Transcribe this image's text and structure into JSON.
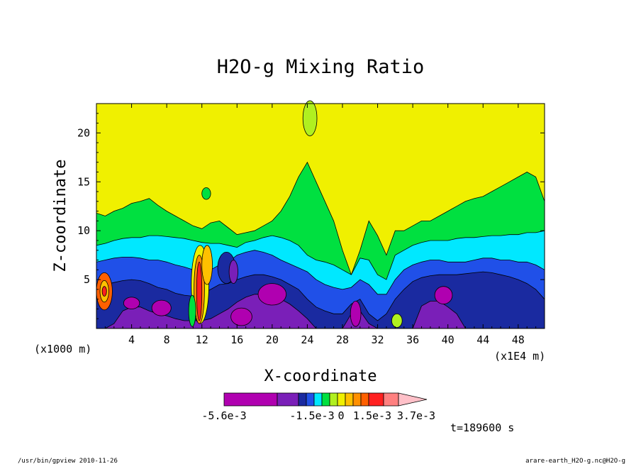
{
  "chart_data": {
    "type": "heatmap",
    "title": "H2O-g Mixing Ratio",
    "xlabel": "X-coordinate",
    "ylabel": "Z-coordinate",
    "x_unit_left": "(x1000 m)",
    "x_unit_right": "(x1E4 m)",
    "x_ticks": [
      4,
      8,
      12,
      16,
      20,
      24,
      28,
      32,
      36,
      40,
      44,
      48
    ],
    "y_ticks": [
      5,
      10,
      15,
      20
    ],
    "xlim": [
      0,
      51
    ],
    "ylim": [
      0,
      23
    ],
    "time_label": "t=189600 s",
    "colorbar": {
      "colors": [
        "#b000b0",
        "#7a1fb8",
        "#1a2aa0",
        "#2050e8",
        "#00e8ff",
        "#00e040",
        "#b0f020",
        "#f0f000",
        "#ffc000",
        "#ff9000",
        "#ff6000",
        "#ff2020",
        "#ff8080",
        "#ffc0c8"
      ],
      "labels": [
        "-5.6e-3",
        "-1.5e-3",
        "0",
        "1.5e-3",
        "3.7e-3"
      ]
    },
    "bands": [
      {
        "name": "yellow",
        "color": "#f0f000",
        "top": [
          23,
          23,
          23,
          23,
          23,
          23,
          23,
          23,
          23,
          23,
          23,
          23,
          23,
          23,
          23,
          23,
          23,
          23,
          23,
          23,
          23,
          23,
          23,
          23,
          23,
          23,
          23,
          23,
          23,
          23,
          23,
          23,
          23,
          23,
          23,
          23,
          23,
          23,
          23,
          23,
          23,
          23,
          23,
          23,
          23,
          23,
          23,
          23,
          23,
          23,
          23,
          23
        ]
      },
      {
        "name": "green",
        "color": "#00e040",
        "top": [
          11.8,
          11.5,
          12.0,
          12.3,
          12.8,
          13.0,
          13.3,
          12.6,
          12.0,
          11.5,
          11.0,
          10.5,
          10.2,
          10.8,
          11.0,
          10.3,
          9.6,
          9.8,
          10.0,
          10.5,
          11.0,
          12.0,
          13.5,
          15.5,
          17.0,
          15.0,
          13.0,
          11.0,
          8.0,
          5.5,
          8.0,
          11.0,
          9.5,
          7.5,
          10.0,
          10.0,
          10.5,
          11.0,
          11.0,
          11.5,
          12.0,
          12.5,
          13.0,
          13.3,
          13.5,
          14.0,
          14.5,
          15.0,
          15.5,
          16.0,
          15.5,
          13.0
        ]
      },
      {
        "name": "cyan",
        "color": "#00e8ff",
        "top": [
          8.5,
          8.7,
          9.0,
          9.2,
          9.3,
          9.3,
          9.5,
          9.5,
          9.4,
          9.3,
          9.2,
          9.0,
          8.8,
          8.7,
          8.7,
          8.5,
          8.3,
          8.8,
          9.0,
          9.3,
          9.5,
          9.3,
          9.0,
          8.5,
          7.5,
          7.0,
          6.8,
          6.5,
          6.0,
          5.5,
          7.2,
          7.0,
          5.5,
          5.0,
          7.5,
          8.0,
          8.5,
          8.8,
          9.0,
          9.0,
          9.0,
          9.2,
          9.3,
          9.3,
          9.4,
          9.5,
          9.5,
          9.6,
          9.6,
          9.8,
          9.8,
          10.0
        ]
      },
      {
        "name": "blue",
        "color": "#2050e8",
        "top": [
          6.8,
          7.0,
          7.2,
          7.3,
          7.3,
          7.2,
          7.0,
          7.0,
          6.8,
          6.5,
          6.3,
          6.0,
          5.8,
          6.0,
          6.5,
          6.8,
          7.5,
          7.8,
          8.0,
          7.8,
          7.5,
          7.0,
          6.6,
          6.2,
          5.8,
          5.0,
          4.5,
          4.2,
          4.0,
          4.2,
          5.0,
          4.5,
          3.5,
          3.5,
          5.0,
          6.0,
          6.5,
          6.8,
          7.0,
          7.0,
          6.8,
          6.8,
          6.8,
          7.0,
          7.2,
          7.2,
          7.0,
          7.0,
          6.8,
          6.8,
          6.5,
          6.0
        ]
      },
      {
        "name": "navy",
        "color": "#1a2aa0",
        "top": [
          4.2,
          4.5,
          4.7,
          4.9,
          5.0,
          4.9,
          4.6,
          4.2,
          4.0,
          3.6,
          3.4,
          3.3,
          3.5,
          4.0,
          4.5,
          4.6,
          5.0,
          5.3,
          5.5,
          5.5,
          5.3,
          5.0,
          4.5,
          4.0,
          3.0,
          2.2,
          1.8,
          1.5,
          1.5,
          2.5,
          3.0,
          1.5,
          0.8,
          1.5,
          3.0,
          4.0,
          4.8,
          5.2,
          5.4,
          5.5,
          5.5,
          5.5,
          5.6,
          5.7,
          5.8,
          5.7,
          5.5,
          5.3,
          5.0,
          4.6,
          4.0,
          3.0
        ]
      },
      {
        "name": "purple",
        "color": "#7a1fb8",
        "top": [
          0,
          0,
          0.5,
          1.8,
          2.2,
          2.2,
          1.8,
          1.5,
          1.3,
          1.0,
          0.8,
          0.8,
          0.8,
          1.0,
          1.5,
          2.0,
          2.7,
          3.2,
          3.5,
          3.5,
          3.3,
          3.0,
          2.5,
          1.8,
          1.0,
          0,
          0,
          0,
          0,
          1.5,
          1.8,
          0.5,
          0,
          0,
          0,
          0,
          0,
          2.3,
          2.8,
          2.8,
          2.2,
          1.5,
          0,
          0,
          0,
          0,
          0,
          0,
          0,
          0,
          0,
          0
        ]
      }
    ]
  },
  "footer": {
    "left": "/usr/bin/gpview  2010-11-26",
    "right": "arare-earth_H2O-g.nc@H2O-g"
  }
}
